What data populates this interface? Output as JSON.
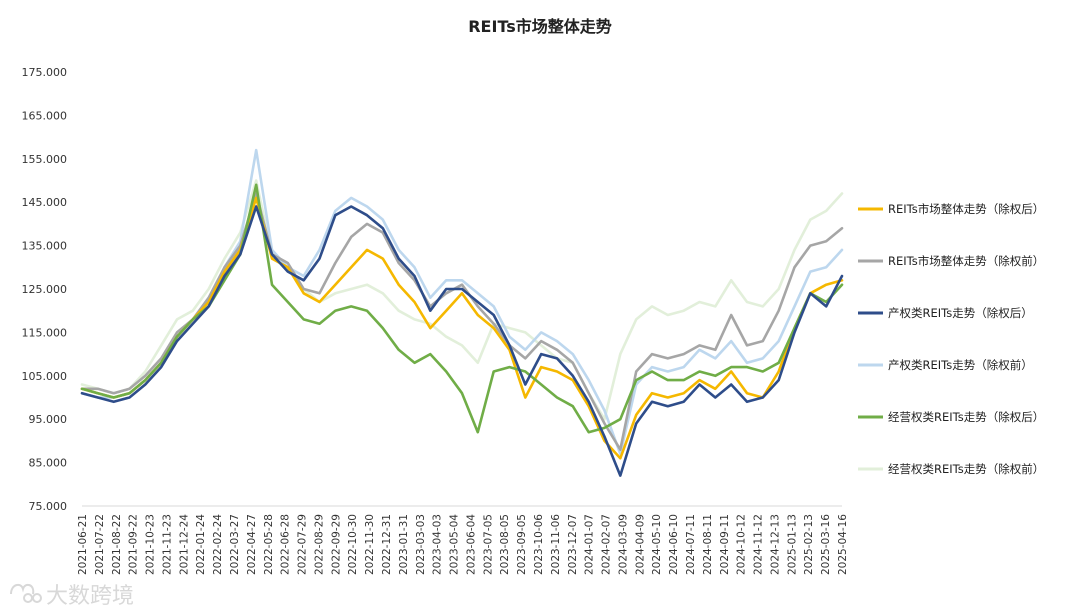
{
  "chart_data": {
    "type": "line",
    "title": "REITs市场整体走势",
    "xlabel": "",
    "ylabel": "",
    "ylim": [
      75,
      175
    ],
    "y_ticks": [
      "75.000",
      "85.000",
      "95.000",
      "105.000",
      "115.000",
      "125.000",
      "135.000",
      "145.000",
      "155.000",
      "165.000",
      "175.000"
    ],
    "x_ticks": [
      "2021-06-21",
      "2021-07-22",
      "2021-08-22",
      "2021-09-22",
      "2021-10-23",
      "2021-11-23",
      "2021-12-24",
      "2022-01-24",
      "2022-02-24",
      "2022-03-27",
      "2022-04-27",
      "2022-05-28",
      "2022-06-28",
      "2022-07-29",
      "2022-08-29",
      "2022-09-29",
      "2022-10-30",
      "2022-11-30",
      "2022-12-31",
      "2023-01-31",
      "2023-03-03",
      "2023-04-03",
      "2023-05-04",
      "2023-06-04",
      "2023-07-05",
      "2023-08-05",
      "2023-09-05",
      "2023-10-06",
      "2023-11-06",
      "2023-12-07",
      "2024-01-07",
      "2024-02-07",
      "2024-03-09",
      "2024-04-09",
      "2024-05-10",
      "2024-06-10",
      "2024-07-11",
      "2024-08-11",
      "2024-09-11",
      "2024-10-12",
      "2024-11-12",
      "2024-12-13",
      "2025-01-13",
      "2025-02-13",
      "2025-03-16",
      "2025-04-16"
    ],
    "legend_position": "right",
    "grid": false,
    "series": [
      {
        "name": "REITs市场整体走势（除权后）",
        "color": "#f5b800",
        "width": 2.6,
        "values": [
          102,
          101,
          100,
          101,
          104,
          108,
          114,
          118,
          122,
          129,
          134,
          146,
          132,
          130,
          124,
          122,
          126,
          130,
          134,
          132,
          126,
          122,
          116,
          120,
          124,
          119,
          116,
          111,
          100,
          107,
          106,
          104,
          98,
          90,
          86,
          96,
          101,
          100,
          101,
          104,
          102,
          106,
          101,
          100,
          106,
          116,
          124,
          126,
          127
        ]
      },
      {
        "name": "REITs市场整体走势（除权前）",
        "color": "#a6a6a6",
        "width": 2.6,
        "values": [
          102,
          102,
          101,
          102,
          105,
          109,
          115,
          118,
          123,
          130,
          135,
          147,
          133,
          131,
          125,
          124,
          131,
          137,
          140,
          138,
          131,
          127,
          121,
          124,
          126,
          121,
          117,
          112,
          109,
          113,
          111,
          108,
          101,
          94,
          88,
          106,
          110,
          109,
          110,
          112,
          111,
          119,
          112,
          113,
          120,
          130,
          135,
          136,
          139
        ]
      },
      {
        "name": "产权类REITs走势（除权后）",
        "color": "#2e4d8a",
        "width": 2.6,
        "values": [
          101,
          100,
          99,
          100,
          103,
          107,
          113,
          117,
          121,
          128,
          133,
          144,
          133,
          129,
          127,
          132,
          142,
          144,
          142,
          139,
          132,
          128,
          120,
          125,
          125,
          122,
          119,
          112,
          103,
          110,
          109,
          105,
          99,
          91,
          82,
          94,
          99,
          98,
          99,
          103,
          100,
          103,
          99,
          100,
          104,
          115,
          124,
          121,
          128
        ]
      },
      {
        "name": "产权类REITs走势（除权前）",
        "color": "#bdd7ee",
        "width": 2.6,
        "values": [
          101,
          100,
          100,
          101,
          104,
          108,
          114,
          118,
          122,
          130,
          136,
          157,
          134,
          130,
          128,
          134,
          143,
          146,
          144,
          141,
          134,
          130,
          123,
          127,
          127,
          124,
          121,
          114,
          111,
          115,
          113,
          110,
          104,
          97,
          87,
          103,
          107,
          106,
          107,
          111,
          109,
          113,
          108,
          109,
          113,
          121,
          129,
          130,
          134
        ]
      },
      {
        "name": "经营权类REITs走势（除权后）",
        "color": "#70ad47",
        "width": 2.6,
        "values": [
          102,
          101,
          100,
          101,
          104,
          108,
          114,
          118,
          121,
          127,
          133,
          149,
          126,
          122,
          118,
          117,
          120,
          121,
          120,
          116,
          111,
          108,
          110,
          106,
          101,
          92,
          106,
          107,
          106,
          103,
          100,
          98,
          92,
          93,
          95,
          104,
          106,
          104,
          104,
          106,
          105,
          107,
          107,
          106,
          108,
          116,
          124,
          122,
          126
        ]
      },
      {
        "name": "经营权类REITs走势（除权前）",
        "color": "#e2efda",
        "width": 2.6,
        "values": [
          103,
          102,
          101,
          102,
          106,
          112,
          118,
          120,
          125,
          132,
          138,
          150,
          133,
          130,
          125,
          122,
          124,
          125,
          126,
          124,
          120,
          118,
          117,
          114,
          112,
          108,
          117,
          116,
          115,
          112,
          109,
          108,
          101,
          95,
          110,
          118,
          121,
          119,
          120,
          122,
          121,
          127,
          122,
          121,
          125,
          134,
          141,
          143,
          147
        ]
      }
    ]
  },
  "watermark": {
    "text": "大数跨境"
  }
}
